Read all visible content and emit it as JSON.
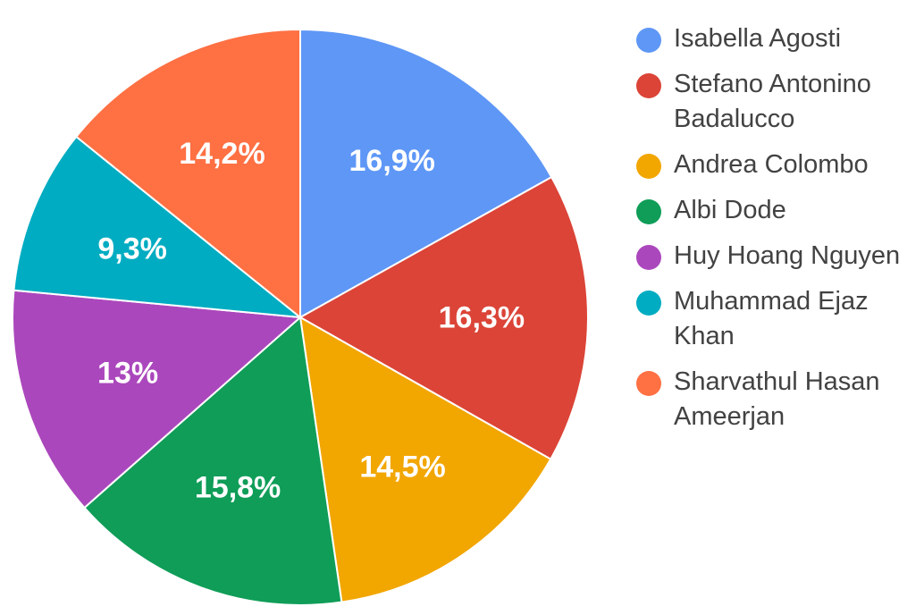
{
  "chart_data": {
    "type": "pie",
    "title": "",
    "legend_position": "right",
    "slices": [
      {
        "label": "Isabella Agosti",
        "value": 16.9,
        "display": "16,9%",
        "color": "#5e97f6"
      },
      {
        "label": "Stefano Antonino Badalucco",
        "value": 16.3,
        "display": "16,3%",
        "color": "#db4437"
      },
      {
        "label": "Andrea Colombo",
        "value": 14.5,
        "display": "14,5%",
        "color": "#f2a600"
      },
      {
        "label": "Albi Dode",
        "value": 15.8,
        "display": "15,8%",
        "color": "#0f9d58"
      },
      {
        "label": "Huy Hoang Nguyen",
        "value": 13,
        "display": "13%",
        "color": "#ab47bc"
      },
      {
        "label": "Muhammad Ejaz Khan",
        "value": 9.3,
        "display": "9,3%",
        "color": "#00acc1"
      },
      {
        "label": "Sharvathul Hasan Ameerjan",
        "value": 14.2,
        "display": "14,2%",
        "color": "#ff7043"
      }
    ]
  }
}
